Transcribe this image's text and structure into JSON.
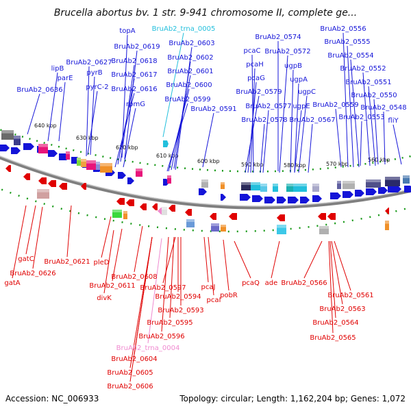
{
  "title": "Brucella abortus bv. 1 str. 9-941 chromosome II, complete ge...",
  "footer": {
    "accession": "Accession: NC_006933",
    "summary": "Topology: circular; Length: 1,162,204 bp; Genes: 1,072"
  },
  "colors": {
    "forward": "#1414d8",
    "reverse": "#e00000",
    "trna": "#22bfdc",
    "trna_rev": "#f08ad0",
    "backbone": "#808080",
    "tick": "#1a9a1a"
  },
  "kbp_marks": [
    "640 kbp",
    "630 kbp",
    "620 kbp",
    "610 kbp",
    "600 kbp",
    "590 kbp",
    "580 kbp",
    "570 kbp",
    "560 kbp"
  ],
  "forward_labels": [
    "topA",
    "BruAb2_trna_0005",
    "BruAb2_0619",
    "BruAb2_0603",
    "BruAb2_0627",
    "BruAb2_0618",
    "BruAb2_0602",
    "lipB",
    "pyrB",
    "BruAb2_0617",
    "BruAb2_0601",
    "parE",
    "pyrC-2",
    "BruAb2_0616",
    "BruAb2_0600",
    "BruAb2_0636",
    "rpmG",
    "BruAb2_0599",
    "BruAb2_0591",
    "BruAb2_0574",
    "pcaC",
    "BruAb2_0572",
    "pcaH",
    "ugpB",
    "pcaG",
    "ugpA",
    "BruAb2_0579",
    "ugpC",
    "BruAb2_0577",
    "ugpE",
    "BruAb2_0578",
    "BruAb2_0567",
    "BruAb2_0556",
    "BruAb2_0555",
    "BruAb2_0554",
    "BruAb2_0552",
    "BruAb2_0551",
    "BruAb2_0550",
    "BruAb2_0559",
    "BruAb2_0548",
    "BruAb2_0553",
    "fliY"
  ],
  "reverse_labels": [
    "gatC",
    "BruAb2_0621",
    "BruAb2_0626",
    "gatA",
    "pleD",
    "BruAb2_0608",
    "BruAb2_0611",
    "divK",
    "BruAb2_0597",
    "BruAb2_0594",
    "BruAb2_0593",
    "BruAb2_0595",
    "BruAb2_0596",
    "BruAb2_trna_0004",
    "BruAb2_0604",
    "BruAb2_0605",
    "BruAb2_0606",
    "pcaJ",
    "pcaI",
    "pobR",
    "pcaQ",
    "ade",
    "BruAb2_0566",
    "BruAb2_0561",
    "BruAb2_0563",
    "BruAb2_0564",
    "BruAb2_0565"
  ]
}
